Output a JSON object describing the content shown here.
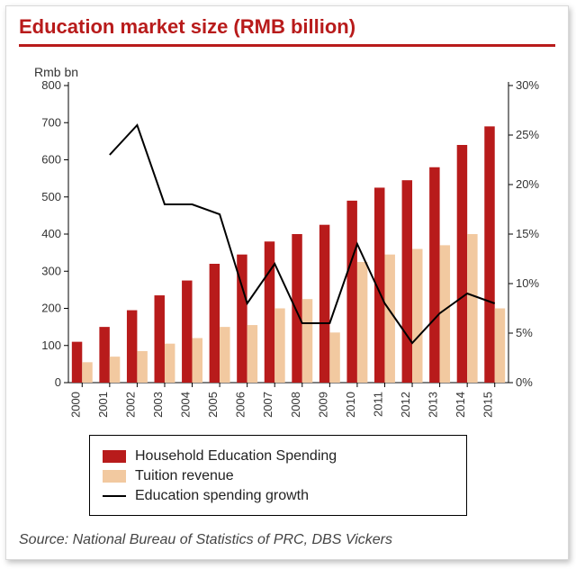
{
  "title": "Education market size (RMB billion)",
  "source": "Source: National Bureau of Statistics of PRC, DBS Vickers",
  "chart": {
    "type": "bar+line",
    "background_color": "#ffffff",
    "categories": [
      "2000",
      "2001",
      "2002",
      "2003",
      "2004",
      "2005",
      "2006",
      "2007",
      "2008",
      "2009",
      "2010",
      "2011",
      "2012",
      "2013",
      "2014",
      "2015"
    ],
    "left_axis": {
      "title": "Rmb bn",
      "min": 0,
      "max": 800,
      "tick_step": 100,
      "tick_color": "#333333",
      "axis_line_color": "#000000"
    },
    "right_axis": {
      "title": "",
      "min": 0,
      "max": 30,
      "tick_step": 5,
      "tick_suffix": "%",
      "tick_color": "#333333",
      "axis_line_color": "#000000"
    },
    "series_bar1": {
      "name": "Household Education Spending",
      "axis": "left",
      "color": "#b81b1b",
      "values": [
        110,
        150,
        195,
        235,
        275,
        320,
        345,
        380,
        400,
        425,
        490,
        525,
        545,
        580,
        640,
        690
      ]
    },
    "series_bar2": {
      "name": "Tuition revenue",
      "axis": "left",
      "color": "#f2c9a0",
      "values": [
        55,
        70,
        85,
        105,
        120,
        150,
        155,
        200,
        225,
        135,
        325,
        345,
        360,
        370,
        400,
        200
      ]
    },
    "series_line": {
      "name": "Education spending growth",
      "axis": "right",
      "color": "#000000",
      "line_width": 2,
      "values": [
        null,
        23,
        26,
        18,
        18,
        17,
        8,
        12,
        6,
        6,
        14,
        8,
        4,
        7,
        9,
        8
      ]
    },
    "category_gap_ratio": 0.25,
    "tick_font_size": 13,
    "axis_title_font_size": 14
  },
  "colors": {
    "accent": "#b81b1b",
    "border": "#d9d9d9"
  }
}
